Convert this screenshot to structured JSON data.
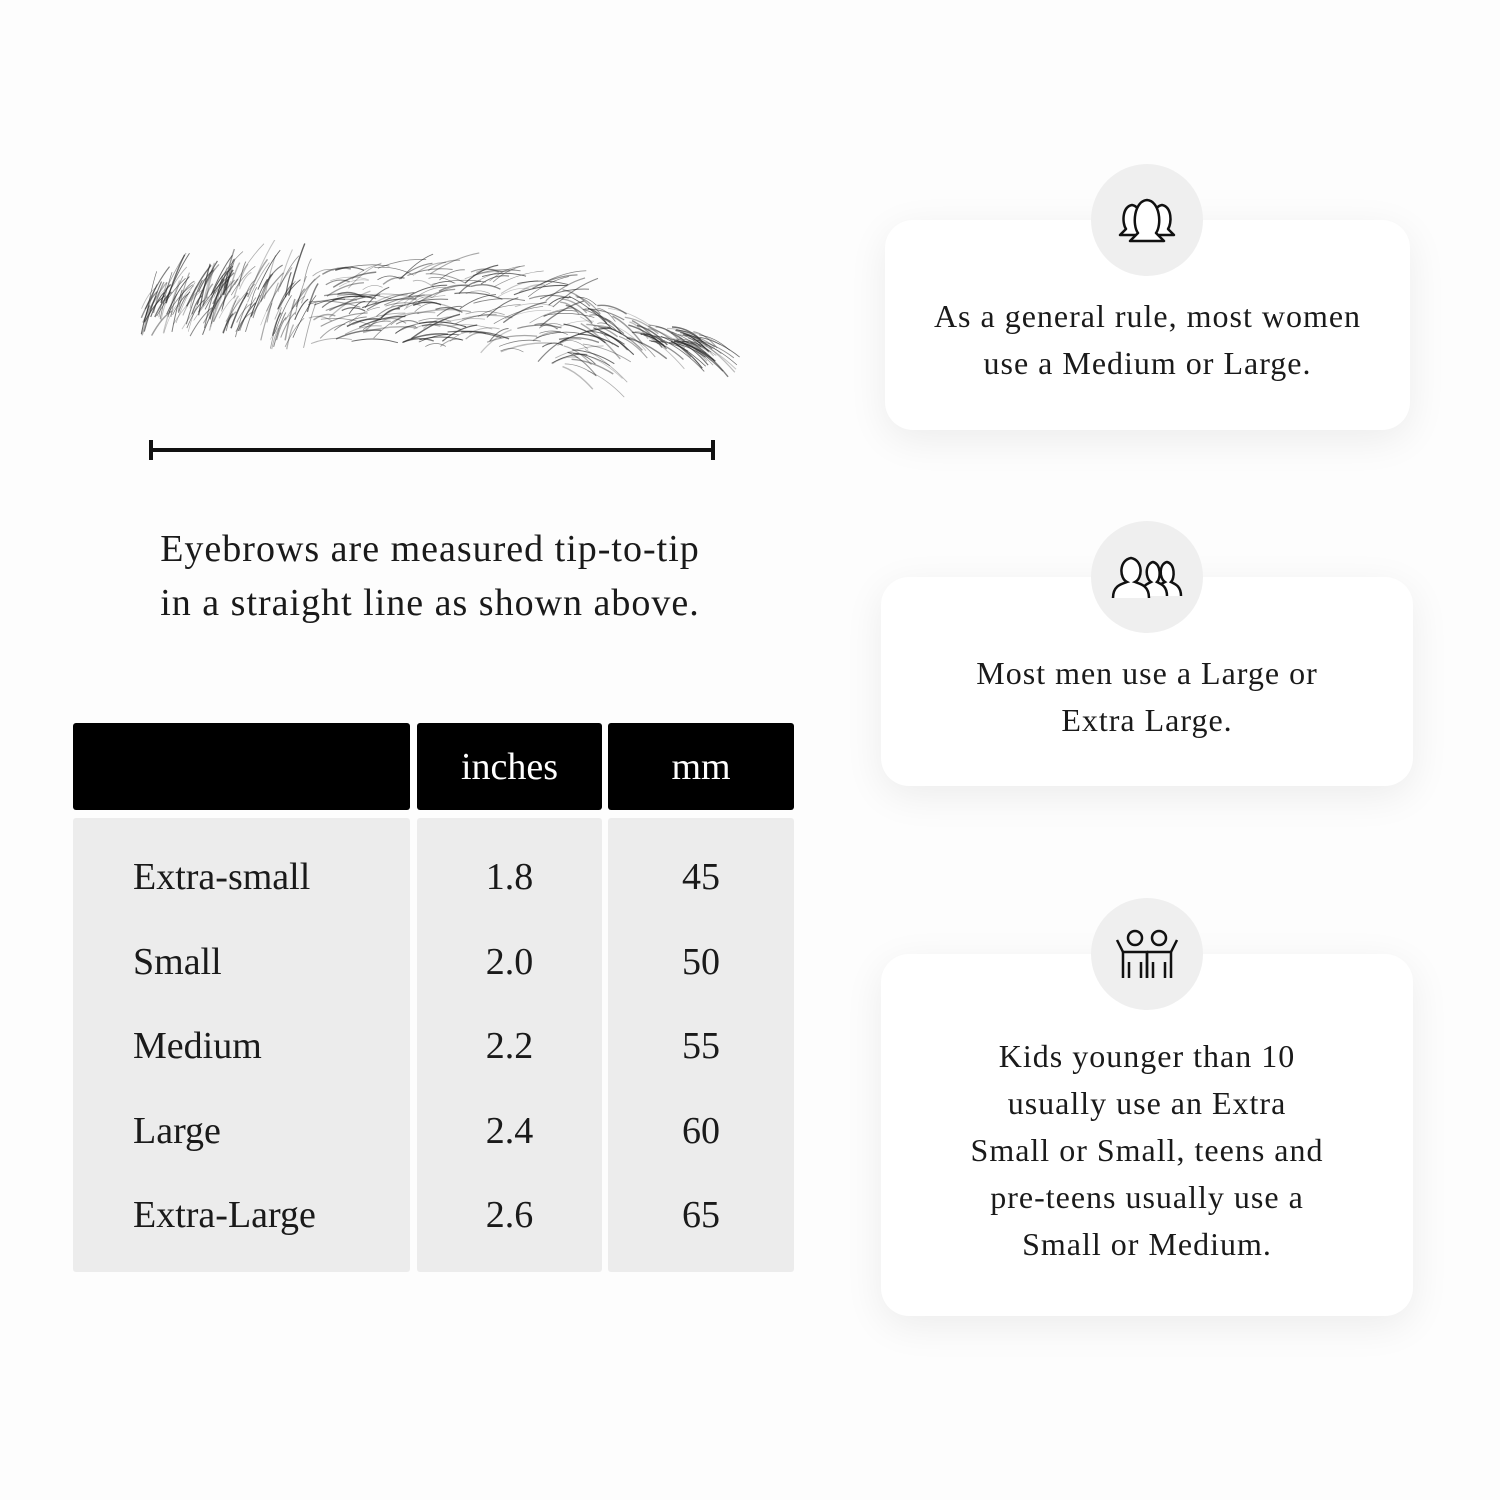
{
  "caption": {
    "line1": "Eyebrows are measured tip-to-tip",
    "line2": "in a straight line as shown above."
  },
  "table": {
    "headers": [
      "",
      "inches",
      "mm"
    ],
    "rows": [
      {
        "size": "Extra-small",
        "inches": "1.8",
        "mm": "45"
      },
      {
        "size": "Small",
        "inches": "2.0",
        "mm": "50"
      },
      {
        "size": "Medium",
        "inches": "2.2",
        "mm": "55"
      },
      {
        "size": "Large",
        "inches": "2.4",
        "mm": "60"
      },
      {
        "size": "Extra-Large",
        "inches": "2.6",
        "mm": "65"
      }
    ]
  },
  "cards": [
    {
      "icon": "women-group-icon",
      "line1": "As a general rule, most women",
      "line2": "use a Medium or Large."
    },
    {
      "icon": "men-group-icon",
      "line1": "Most men use a Large or",
      "line2": "Extra Large."
    },
    {
      "icon": "kids-icon",
      "line1": "Kids younger than 10",
      "line2": "usually use an Extra",
      "line3": "Small or Small, teens and",
      "line4": "pre-teens usually use a",
      "line5": "Small or Medium."
    }
  ]
}
